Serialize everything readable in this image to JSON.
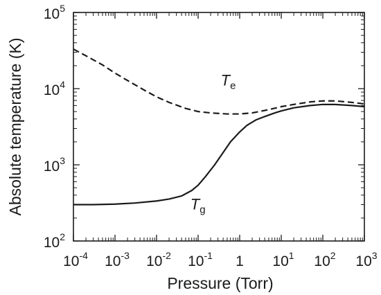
{
  "chart_data": {
    "type": "line",
    "title": "",
    "xlabel": "Pressure (Torr)",
    "ylabel": "Absolute temperature (K)",
    "xscale": "log",
    "yscale": "log",
    "xlim": [
      0.0001,
      1000
    ],
    "ylim": [
      100,
      100000
    ],
    "x_ticks": [
      {
        "base": "10",
        "exp": "-4"
      },
      {
        "base": "10",
        "exp": "-3"
      },
      {
        "base": "10",
        "exp": "-2"
      },
      {
        "base": "10",
        "exp": "-1"
      },
      {
        "base": "1",
        "exp": ""
      },
      {
        "base": "10",
        "exp": "1"
      },
      {
        "base": "10",
        "exp": "2"
      },
      {
        "base": "10",
        "exp": "3"
      }
    ],
    "y_ticks": [
      {
        "base": "10",
        "exp": "2"
      },
      {
        "base": "10",
        "exp": "3"
      },
      {
        "base": "10",
        "exp": "4"
      },
      {
        "base": "10",
        "exp": "5"
      }
    ],
    "grid": false,
    "series": [
      {
        "name": "T_e",
        "label_main": "T",
        "label_sub": "e",
        "style": "dashed",
        "color": "#1a1a1a",
        "x": [
          0.0001,
          0.0002,
          0.0005,
          0.001,
          0.002,
          0.005,
          0.01,
          0.02,
          0.05,
          0.1,
          0.2,
          0.5,
          1,
          2,
          5,
          10,
          20,
          50,
          100,
          200,
          500,
          1000
        ],
        "y": [
          33000,
          27000,
          20500,
          16000,
          12800,
          9600,
          7800,
          6600,
          5500,
          5000,
          4800,
          4650,
          4650,
          4800,
          5300,
          5800,
          6200,
          6700,
          6900,
          6900,
          6600,
          6300
        ]
      },
      {
        "name": "T_g",
        "label_main": "T",
        "label_sub": "g",
        "style": "solid",
        "color": "#1a1a1a",
        "x": [
          0.0001,
          0.0003,
          0.001,
          0.003,
          0.01,
          0.02,
          0.04,
          0.07,
          0.1,
          0.15,
          0.25,
          0.4,
          0.6,
          1,
          1.5,
          2.5,
          4,
          7,
          10,
          20,
          50,
          100,
          200,
          500,
          1000
        ],
        "y": [
          300,
          300,
          305,
          315,
          335,
          355,
          390,
          460,
          540,
          700,
          1000,
          1450,
          2000,
          2700,
          3300,
          3900,
          4300,
          4800,
          5100,
          5600,
          6000,
          6200,
          6200,
          6000,
          5800
        ]
      }
    ]
  }
}
